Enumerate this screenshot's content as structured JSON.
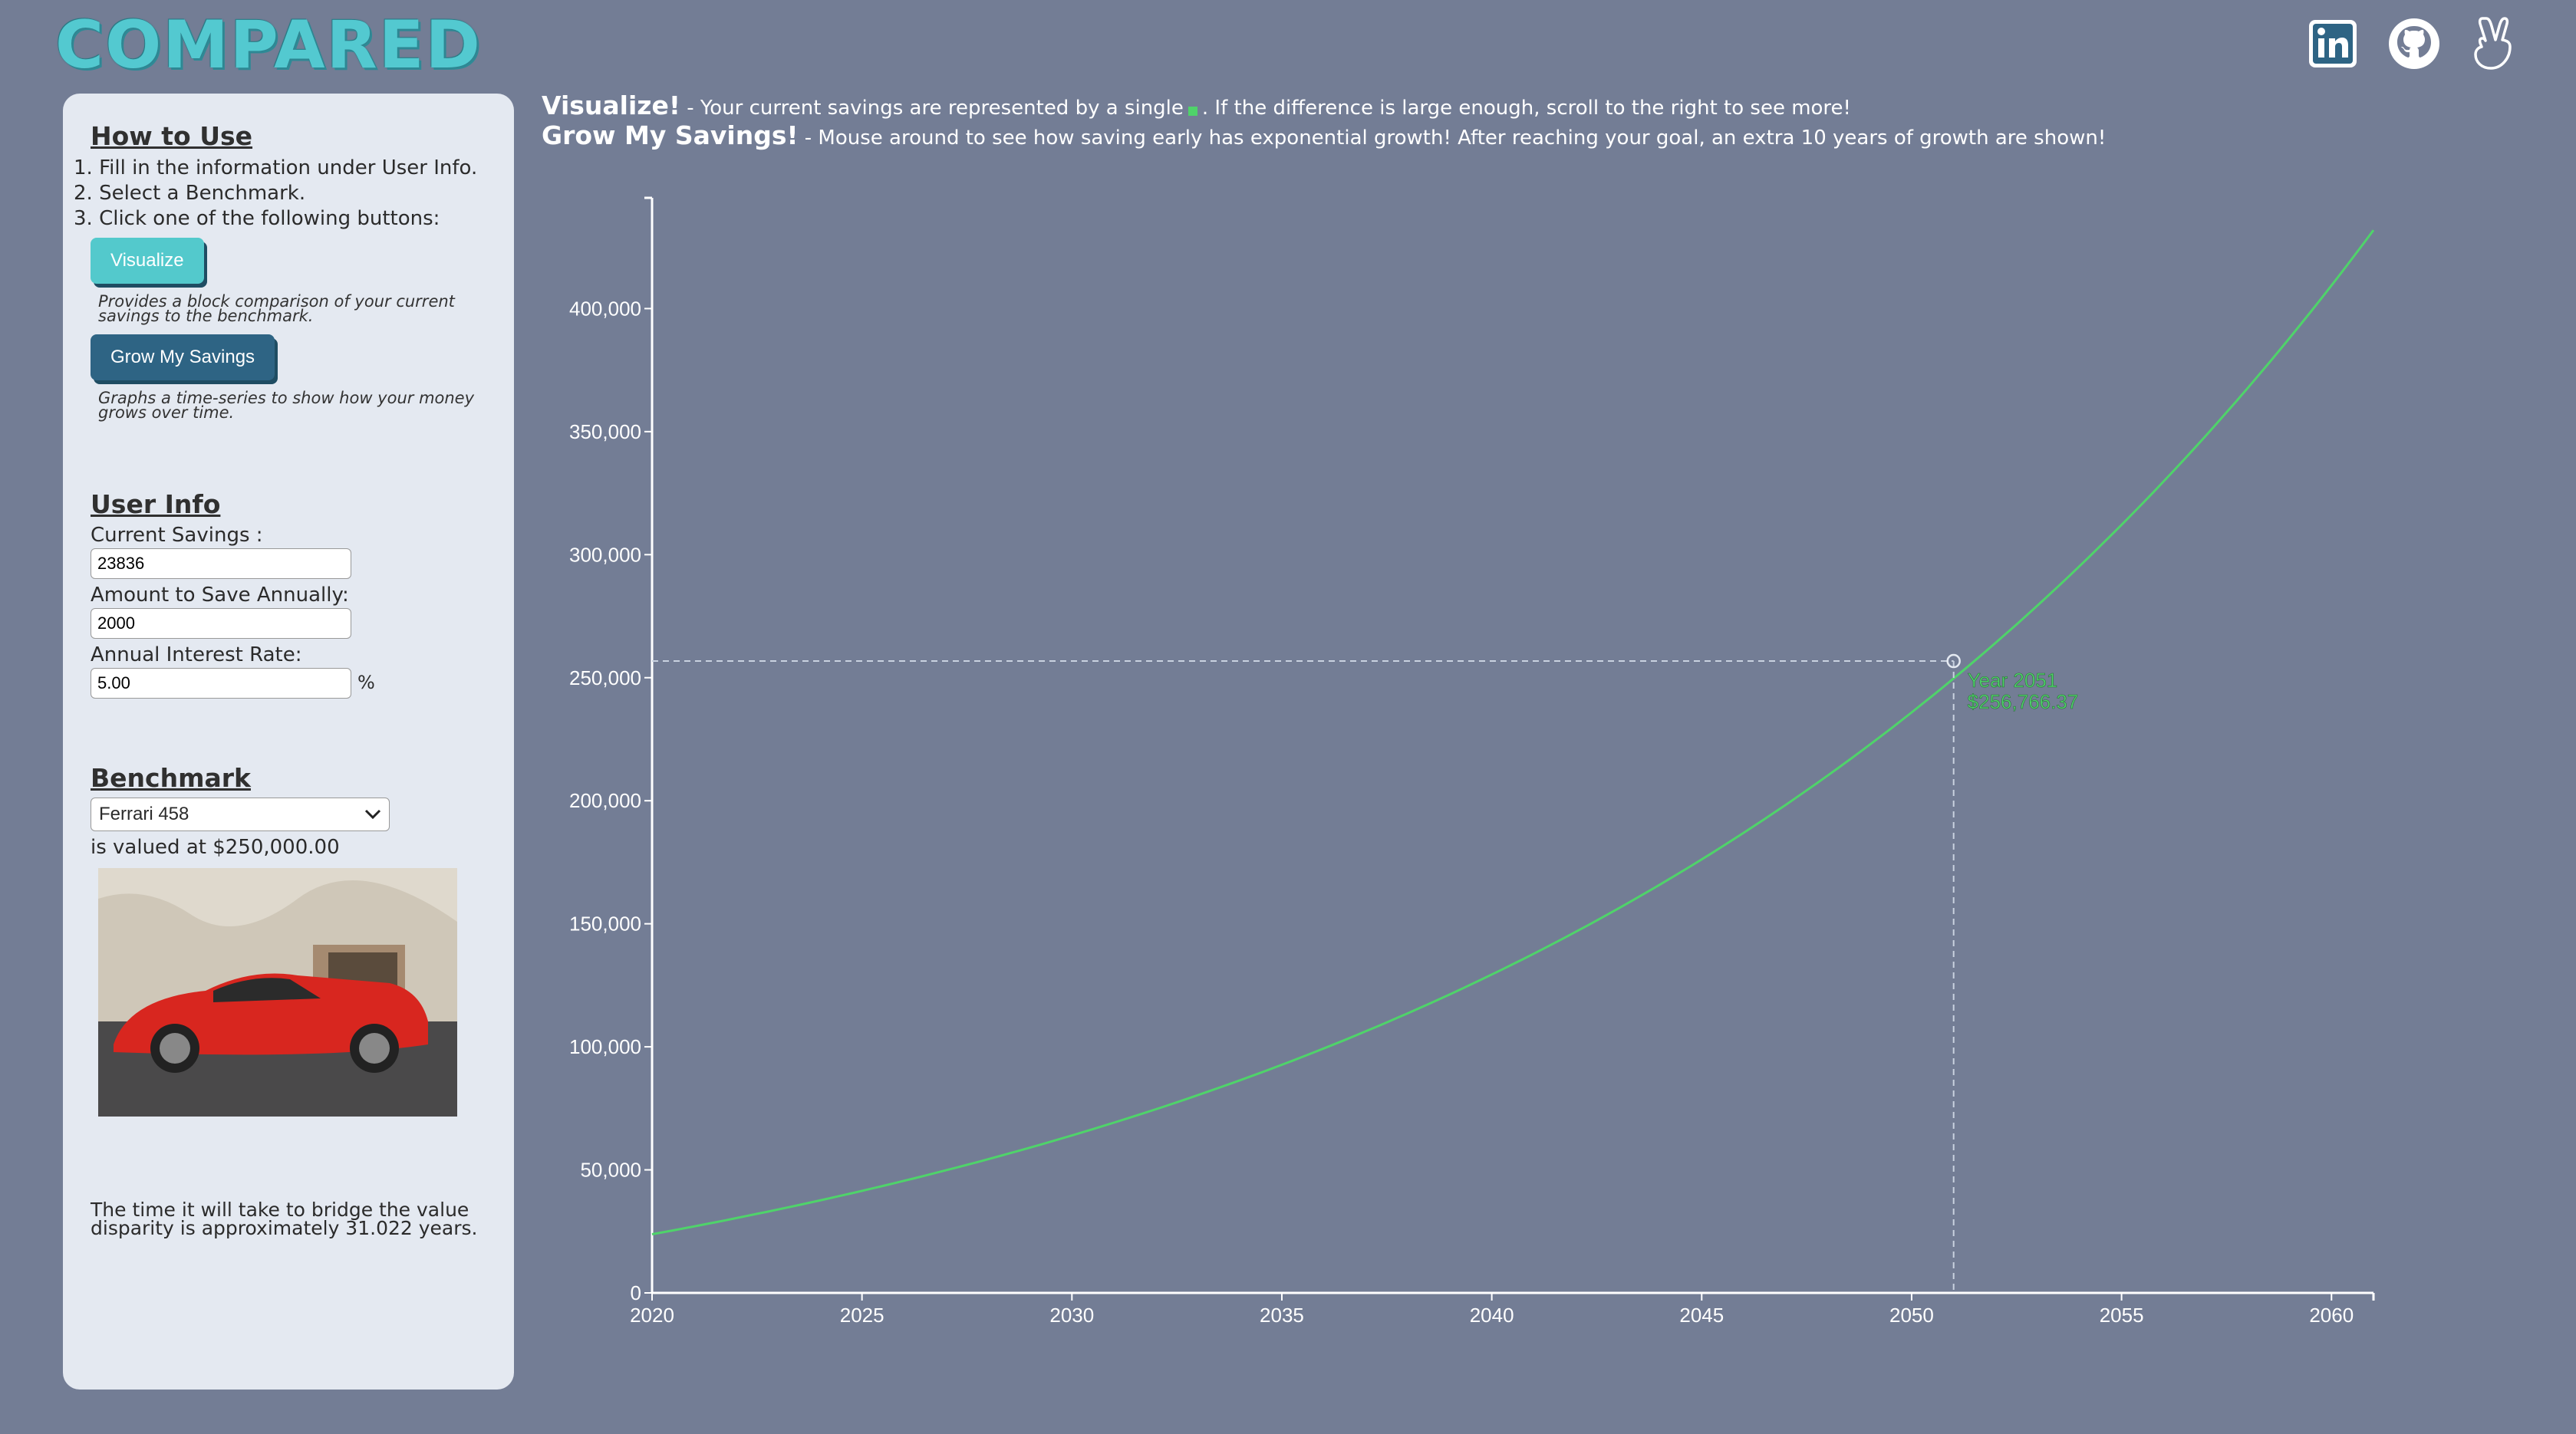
{
  "logo": "COMPARED",
  "header": {
    "visualize_title": "Visualize!",
    "visualize_text_a": " - Your current savings are represented by a single",
    "visualize_text_b": ". If the difference is large enough, scroll to the right to see more!",
    "grow_title": "Grow My Savings!",
    "grow_text": " - Mouse around to see how saving early has exponential growth! After reaching your goal, an extra 10 years of growth are shown!"
  },
  "sidebar": {
    "how_to_title": "How to Use",
    "steps": [
      "1. Fill in the information under User Info.",
      "2. Select a Benchmark.",
      "3. Click one of the following buttons:"
    ],
    "visualize_button": "Visualize",
    "visualize_hint": "Provides a block comparison of your current savings to the benchmark.",
    "grow_button": "Grow My Savings",
    "grow_hint": "Graphs a time-series to show how your money grows over time.",
    "user_info_title": "User Info",
    "current_savings_label": "Current Savings :",
    "current_savings_value": "23836",
    "annual_label": "Amount to Save Annually:",
    "annual_value": "2000",
    "rate_label": "Annual Interest Rate:",
    "rate_value": "5.00",
    "rate_unit": "%",
    "benchmark_title": "Benchmark",
    "benchmark_selected": "Ferrari 458",
    "valued_text": "is valued at $250,000.00",
    "disparity_text": "The time it will take to bridge the value disparity is approximately 31.022 years."
  },
  "icons": [
    "linkedin-icon",
    "github-icon",
    "angellist-icon"
  ],
  "colors": {
    "background": "#737d95",
    "line": "#4fd36a",
    "accent": "#53c9cc",
    "grow_button": "#2e6484"
  },
  "chart_data": {
    "type": "line",
    "x_range": [
      2020,
      2061
    ],
    "y_range": [
      0,
      445000
    ],
    "x_ticks": [
      2020,
      2025,
      2030,
      2035,
      2040,
      2045,
      2050,
      2055,
      2060
    ],
    "y_ticks": [
      0,
      50000,
      100000,
      150000,
      200000,
      250000,
      300000,
      350000,
      400000
    ],
    "y_tick_labels": [
      "0",
      "50,000",
      "100,000",
      "150,000",
      "200,000",
      "250,000",
      "300,000",
      "350,000",
      "400,000"
    ],
    "series": [
      {
        "start_value": 23836,
        "annual_contribution": 2000,
        "rate": 0.05
      }
    ],
    "hover": {
      "year": 2051,
      "value": 256766.37,
      "label_year": "Year 2051",
      "label_value": "$256,766.37"
    }
  }
}
